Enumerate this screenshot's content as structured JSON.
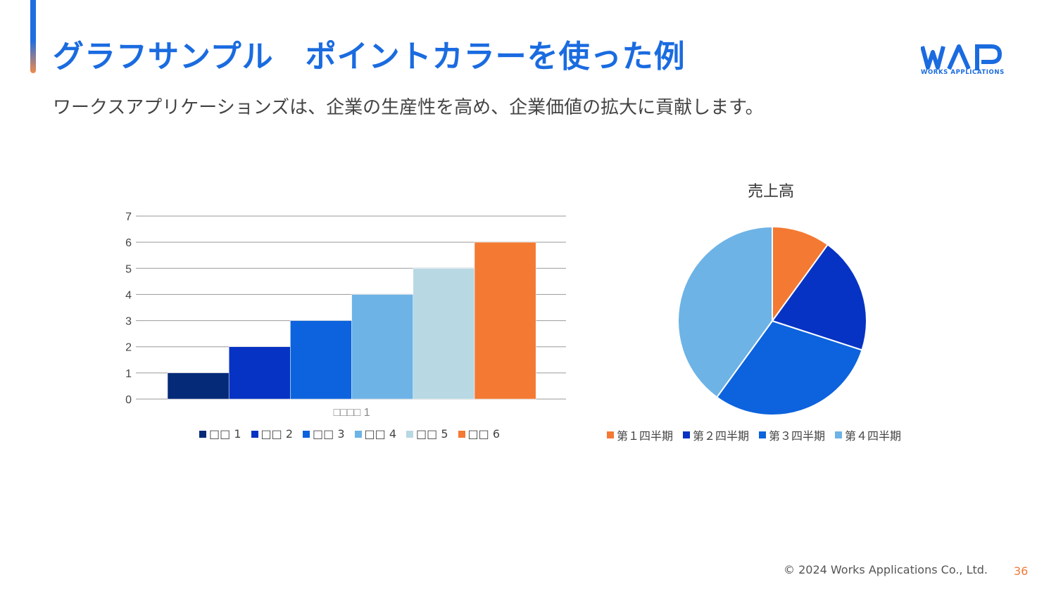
{
  "slide": {
    "title": "グラフサンプル　ポイントカラーを使った例",
    "subtitle": "ワークスアプリケーションズは、企業の生産性を高め、企業価値の拡大に貢献します。",
    "copyright": "© 2024 Works Applications Co., Ltd.",
    "page_number": "36"
  },
  "logo": {
    "wordmark": "WAP",
    "tagline": "WORKS APPLICATIONS",
    "color": "#1a6be0"
  },
  "chart_data": [
    {
      "type": "bar",
      "categories": [
        "□□□□ 1"
      ],
      "series": [
        {
          "name": "□□ 1",
          "values": [
            1
          ],
          "color": "#042a78"
        },
        {
          "name": "□□ 2",
          "values": [
            2
          ],
          "color": "#0633c4"
        },
        {
          "name": "□□ 3",
          "values": [
            3
          ],
          "color": "#0c63dd"
        },
        {
          "name": "□□ 4",
          "values": [
            4
          ],
          "color": "#6db3e6"
        },
        {
          "name": "□□ 5",
          "values": [
            5
          ],
          "color": "#b8d8e3"
        },
        {
          "name": "□□ 6",
          "values": [
            6
          ],
          "color": "#f47932"
        }
      ],
      "ylim": [
        0,
        7
      ],
      "yticks": [
        "0",
        "1",
        "2",
        "3",
        "4",
        "5",
        "6",
        "7"
      ],
      "grid": true,
      "legend": "bottom"
    },
    {
      "type": "pie",
      "title": "売上高",
      "labels": [
        "第１四半期",
        "第２四半期",
        "第３四半期",
        "第４四半期"
      ],
      "values": [
        10,
        20,
        30,
        40
      ],
      "colors": [
        "#f47932",
        "#0633c4",
        "#0c63dd",
        "#6db3e6"
      ],
      "legend": "bottom"
    }
  ]
}
